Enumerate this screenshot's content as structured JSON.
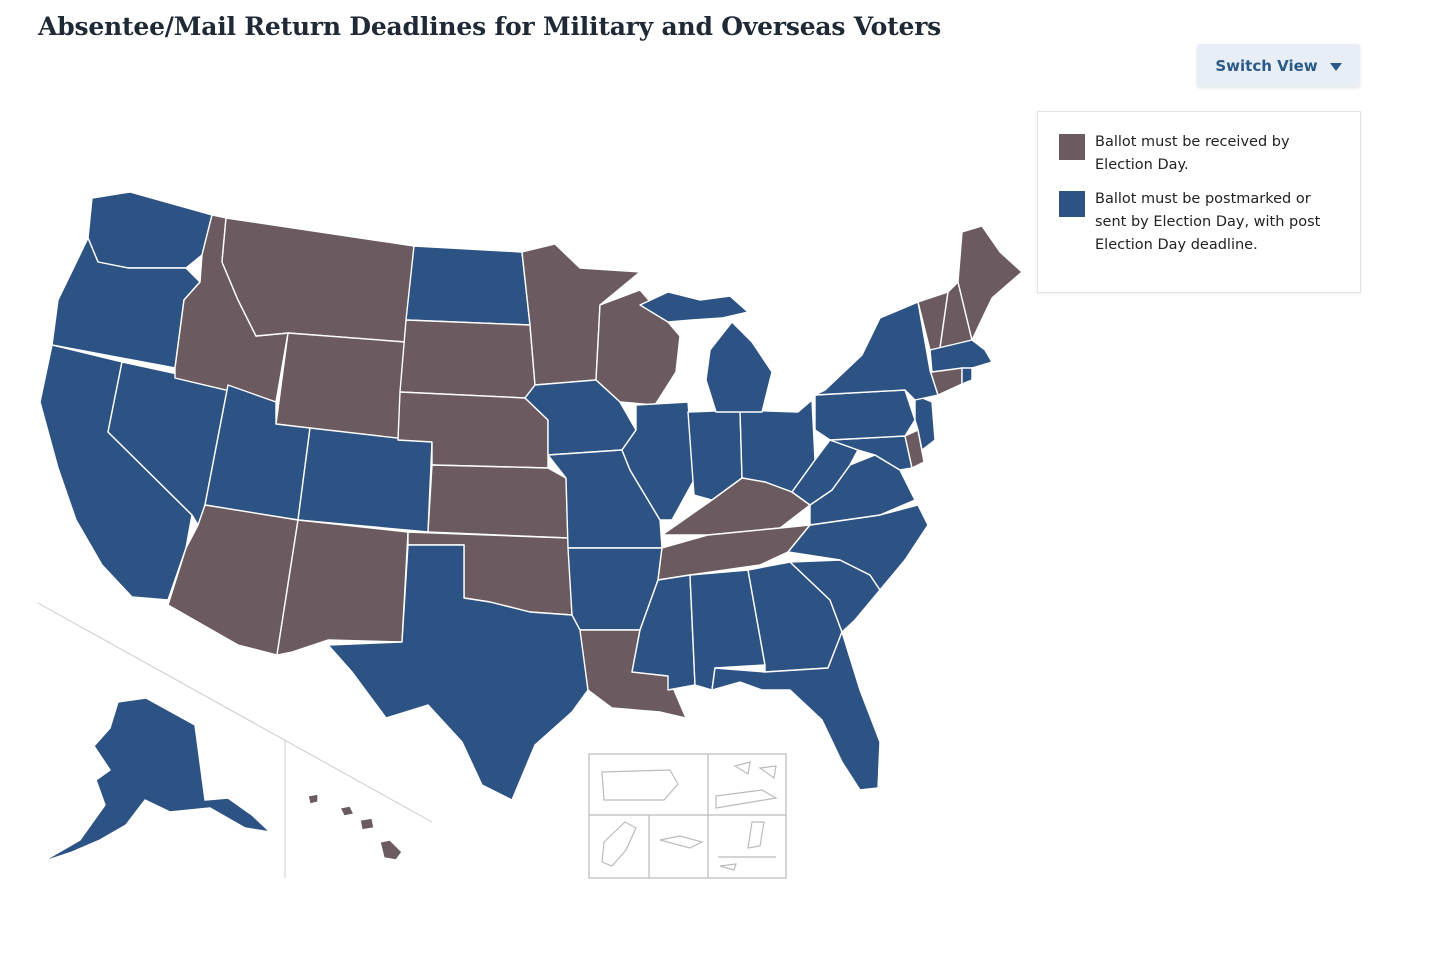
{
  "title": "Absentee/Mail Return Deadlines for Military and Overseas Voters",
  "switch_view_label": "Switch View",
  "legend": [
    {
      "label": "Ballot must be received by Election Day.",
      "color": "#6b5a5f"
    },
    {
      "label": "Ballot must be postmarked or sent by Election Day, with post Election Day deadline.",
      "color": "#2d5385"
    }
  ],
  "colors": {
    "received": "#6b5a5f",
    "postmarked": "#2d5385",
    "border": "#ffffff",
    "inset_outline": "#bbbbbb"
  },
  "states": {
    "received": [
      "ID",
      "MT",
      "WY",
      "SD",
      "NE",
      "KS",
      "OK",
      "NM",
      "AZ",
      "MN",
      "WI",
      "KY",
      "TN",
      "LA",
      "ME",
      "NH",
      "VT",
      "CT",
      "DE",
      "HI"
    ],
    "postmarked": [
      "WA",
      "OR",
      "CA",
      "NV",
      "UT",
      "CO",
      "ND",
      "TX",
      "IA",
      "MO",
      "AR",
      "MS",
      "AL",
      "GA",
      "FL",
      "SC",
      "NC",
      "VA",
      "WV",
      "MD",
      "NJ",
      "PA",
      "NY",
      "MA",
      "RI",
      "OH",
      "IN",
      "IL",
      "MI",
      "AK"
    ]
  }
}
